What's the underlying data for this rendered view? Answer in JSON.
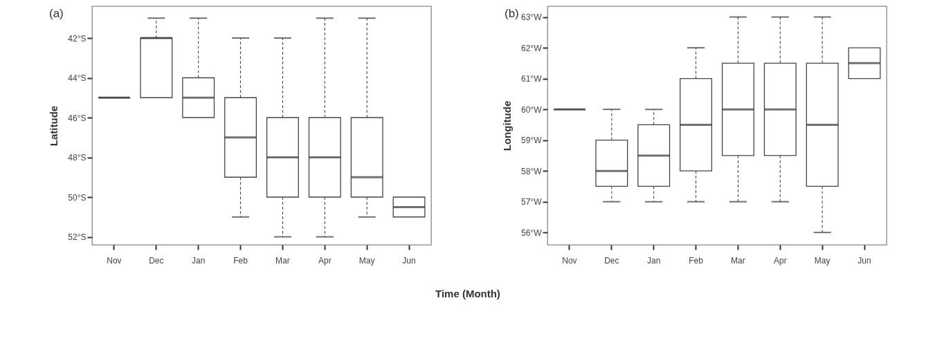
{
  "chart_data": [
    {
      "type": "box",
      "title": "(a)",
      "ylabel": "Latitude",
      "xlabel": "Time (Month)",
      "categories": [
        "Nov",
        "Dec",
        "Jan",
        "Feb",
        "Mar",
        "Apr",
        "May",
        "Jun"
      ],
      "boxes": [
        {
          "low": 45,
          "q1": 45,
          "median": 45,
          "q3": 45,
          "high": 45
        },
        {
          "low": 45,
          "q1": 45,
          "median": 42,
          "q3": 42,
          "high": 41
        },
        {
          "low": 46,
          "q1": 46,
          "median": 45,
          "q3": 44,
          "high": 41
        },
        {
          "low": 51,
          "q1": 49,
          "median": 47,
          "q3": 45,
          "high": 42
        },
        {
          "low": 52,
          "q1": 50,
          "median": 48,
          "q3": 46,
          "high": 42
        },
        {
          "low": 52,
          "q1": 50,
          "median": 48,
          "q3": 46,
          "high": 41
        },
        {
          "low": 51,
          "q1": 50,
          "median": 49,
          "q3": 46,
          "high": 41
        },
        {
          "low": 51,
          "q1": 51,
          "median": 50.5,
          "q3": 50,
          "high": 50
        }
      ],
      "ylim": [
        52.4,
        40.4
      ],
      "yticks": [
        {
          "value": 42,
          "label": "42°S"
        },
        {
          "value": 44,
          "label": "44°S"
        },
        {
          "value": 46,
          "label": "46°S"
        },
        {
          "value": 48,
          "label": "48°S"
        },
        {
          "value": 50,
          "label": "50°S"
        },
        {
          "value": 52,
          "label": "52°S"
        }
      ],
      "grid": false
    },
    {
      "type": "box",
      "title": "(b)",
      "ylabel": "Longitude",
      "categories": [
        "Nov",
        "Dec",
        "Jan",
        "Feb",
        "Mar",
        "Apr",
        "May",
        "Jun"
      ],
      "boxes": [
        {
          "low": 60,
          "q1": 60,
          "median": 60,
          "q3": 60,
          "high": 60
        },
        {
          "low": 57,
          "q1": 57.5,
          "median": 58,
          "q3": 59,
          "high": 60
        },
        {
          "low": 57,
          "q1": 57.5,
          "median": 58.5,
          "q3": 59.5,
          "high": 60
        },
        {
          "low": 57,
          "q1": 58,
          "median": 59.5,
          "q3": 61,
          "high": 62
        },
        {
          "low": 57,
          "q1": 58.5,
          "median": 60,
          "q3": 61.5,
          "high": 63
        },
        {
          "low": 57,
          "q1": 58.5,
          "median": 60,
          "q3": 61.5,
          "high": 63
        },
        {
          "low": 56,
          "q1": 57.5,
          "median": 59.5,
          "q3": 61.5,
          "high": 63
        },
        {
          "low": 61,
          "q1": 61,
          "median": 61.5,
          "q3": 62,
          "high": 62
        }
      ],
      "ylim": [
        55.6,
        63.35
      ],
      "yticks": [
        {
          "value": 56,
          "label": "56°W"
        },
        {
          "value": 57,
          "label": "57°W"
        },
        {
          "value": 58,
          "label": "58°W"
        },
        {
          "value": 59,
          "label": "59°W"
        },
        {
          "value": 60,
          "label": "60°W"
        },
        {
          "value": 61,
          "label": "61°W"
        },
        {
          "value": 62,
          "label": "62°W"
        },
        {
          "value": 63,
          "label": "63°W"
        }
      ],
      "grid": false
    }
  ]
}
